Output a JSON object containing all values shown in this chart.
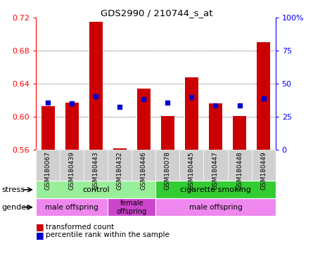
{
  "title": "GDS2990 / 210744_s_at",
  "samples": [
    "GSM180067",
    "GSM180439",
    "GSM180443",
    "GSM180432",
    "GSM180446",
    "GSM180078",
    "GSM180445",
    "GSM180447",
    "GSM180448",
    "GSM180449"
  ],
  "red_values": [
    0.613,
    0.617,
    0.715,
    0.562,
    0.634,
    0.601,
    0.648,
    0.616,
    0.601,
    0.69
  ],
  "blue_values": [
    0.617,
    0.616,
    0.625,
    0.612,
    0.621,
    0.617,
    0.624,
    0.614,
    0.614,
    0.622
  ],
  "ymin": 0.56,
  "ymax": 0.72,
  "yticks": [
    0.56,
    0.6,
    0.64,
    0.68,
    0.72
  ],
  "ytick_labels_left": [
    "0.56",
    "0.60",
    "0.64",
    "0.68",
    "0.72"
  ],
  "yticks_right_vals": [
    0,
    25,
    50,
    75,
    100
  ],
  "yticks_right_labels": [
    "0",
    "25",
    "50",
    "75",
    "100%"
  ],
  "bar_color": "#cc0000",
  "dot_color": "#0000cc",
  "bar_bottom": 0.56,
  "stress_labels": [
    "control",
    "cigarette smoking"
  ],
  "stress_color_light": "#99ee99",
  "stress_color_dark": "#33cc33",
  "gender_labels": [
    "male offspring",
    "female\noffspring",
    "male offspring"
  ],
  "gender_color_light": "#ee88ee",
  "gender_color_dark": "#cc44cc",
  "legend_red_label": "transformed count",
  "legend_blue_label": "percentile rank within the sample",
  "bg_xtick": "#d0d0d0"
}
